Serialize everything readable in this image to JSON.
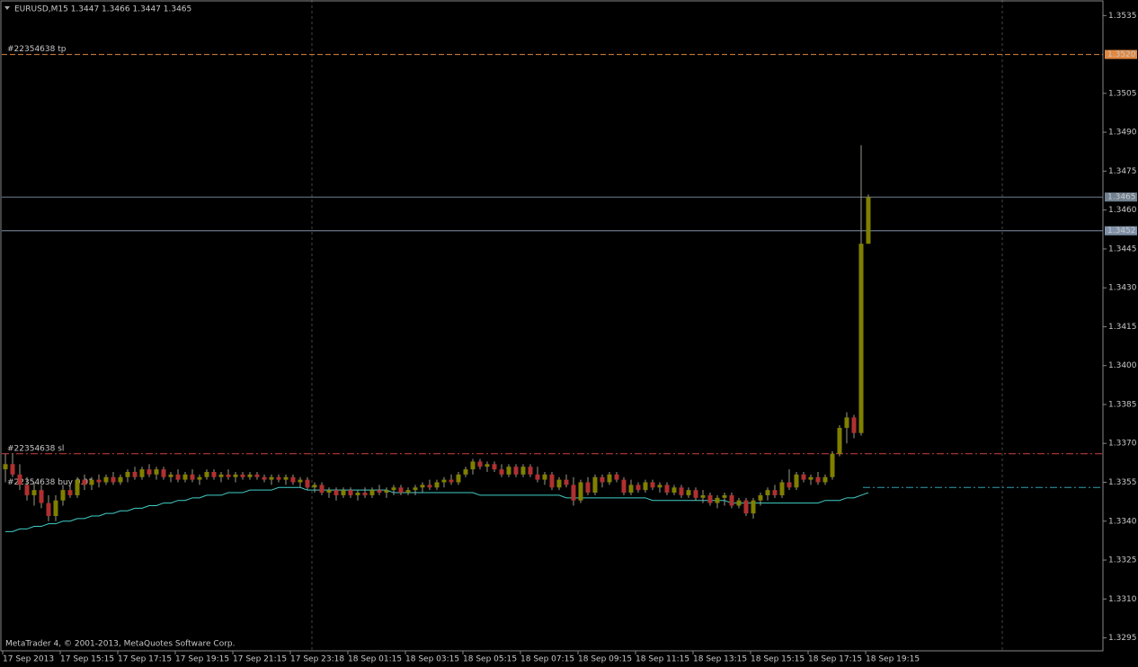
{
  "chart_data": {
    "type": "candlestick",
    "header": "EURUSD,M15  1.3447 1.3466 1.3447 1.3465",
    "footer": "MetaTrader 4, © 2001-2013, MetaQuotes Software Corp.",
    "ylim": [
      1.329,
      1.3541
    ],
    "yticks": [
      1.3535,
      1.3505,
      {
        "value": 1.349,
        "label": "1.3490"
      },
      1.3475,
      {
        "value": 1.346,
        "label": "1.3460"
      },
      1.3445,
      {
        "value": 1.343,
        "label": "1.3430"
      },
      1.3415,
      {
        "value": 1.34,
        "label": "1.3400"
      },
      1.3385,
      {
        "value": 1.337,
        "label": "1.3370"
      },
      1.3355,
      {
        "value": 1.334,
        "label": "1.3340"
      },
      1.3325,
      {
        "value": 1.331,
        "label": "1.3310"
      },
      1.3295
    ],
    "up_color": "#808000",
    "down_color": "#b03030",
    "categories": [
      "17 Sep 2013",
      null,
      null,
      null,
      null,
      null,
      null,
      null,
      "17 Sep 15:15",
      null,
      null,
      null,
      null,
      null,
      null,
      null,
      "17 Sep 17:15",
      null,
      null,
      null,
      null,
      null,
      null,
      null,
      "17 Sep 19:15",
      null,
      null,
      null,
      null,
      null,
      null,
      null,
      "17 Sep 21:15",
      null,
      null,
      null,
      null,
      null,
      null,
      null,
      "17 Sep 23:18",
      null,
      null,
      null,
      null,
      null,
      null,
      null,
      "18 Sep 01:15",
      null,
      null,
      null,
      null,
      null,
      null,
      null,
      "18 Sep 03:15",
      null,
      null,
      null,
      null,
      null,
      null,
      null,
      "18 Sep 05:15",
      null,
      null,
      null,
      null,
      null,
      null,
      null,
      "18 Sep 07:15",
      null,
      null,
      null,
      null,
      null,
      null,
      null,
      "18 Sep 09:15",
      null,
      null,
      null,
      null,
      null,
      null,
      null,
      "18 Sep 11:15",
      null,
      null,
      null,
      null,
      null,
      null,
      null,
      "18 Sep 13:15",
      null,
      null,
      null,
      null,
      null,
      null,
      null,
      "18 Sep 15:15",
      null,
      null,
      null,
      null,
      null,
      null,
      null,
      "18 Sep 17:15",
      null,
      null,
      null,
      null,
      null,
      null,
      null,
      "18 Sep 19:15"
    ],
    "open": [
      1.336,
      1.3362,
      1.3358,
      1.3354,
      1.335,
      1.3352,
      1.3347,
      1.3342,
      1.3348,
      1.3352,
      1.335,
      1.3356,
      1.3354,
      1.3356,
      1.3355,
      1.3357,
      1.3355,
      1.3357,
      1.3359,
      1.3357,
      1.336,
      1.3358,
      1.336,
      1.3357,
      1.3358,
      1.3356,
      1.3358,
      1.3356,
      1.3357,
      1.3359,
      1.3357,
      1.3358,
      1.3357,
      1.3358,
      1.3357,
      1.3358,
      1.3357,
      1.3356,
      1.3357,
      1.3356,
      1.3357,
      1.3355,
      1.3356,
      1.3353,
      1.3354,
      1.3351,
      1.3352,
      1.335,
      1.3352,
      1.335,
      1.3351,
      1.335,
      1.3352,
      1.3351,
      1.3352,
      1.3353,
      1.3351,
      1.3352,
      1.3353,
      1.3354,
      1.3353,
      1.3355,
      1.3356,
      1.3355,
      1.3358,
      1.336,
      1.3363,
      1.3361,
      1.3362,
      1.336,
      1.3358,
      1.3361,
      1.3358,
      1.3361,
      1.3358,
      1.3356,
      1.3358,
      1.3353,
      1.3356,
      1.3354,
      1.3348,
      1.3355,
      1.3351,
      1.3357,
      1.3355,
      1.3358,
      1.3356,
      1.3351,
      1.3354,
      1.3352,
      1.3355,
      1.3353,
      1.3354,
      1.3351,
      1.3353,
      1.335,
      1.3352,
      1.3349,
      1.335,
      1.3347,
      1.3349,
      1.335,
      1.3346,
      1.3348,
      1.3343,
      1.3348,
      1.335,
      1.3352,
      1.335,
      1.3355,
      1.3353,
      1.3358,
      1.3356,
      1.3357,
      1.3355,
      1.3357,
      1.3366,
      1.3376,
      1.338,
      1.3374,
      1.3447
    ],
    "high": [
      1.3366,
      1.3366,
      1.3362,
      1.3357,
      1.3355,
      1.3354,
      1.335,
      1.335,
      1.3354,
      1.3354,
      1.3357,
      1.3358,
      1.3357,
      1.3358,
      1.3358,
      1.3359,
      1.3358,
      1.336,
      1.3361,
      1.3361,
      1.3362,
      1.3361,
      1.3361,
      1.3359,
      1.336,
      1.3359,
      1.336,
      1.3358,
      1.336,
      1.336,
      1.3359,
      1.336,
      1.3359,
      1.3359,
      1.3359,
      1.3359,
      1.3358,
      1.3358,
      1.3358,
      1.3358,
      1.3358,
      1.3357,
      1.3357,
      1.3355,
      1.3355,
      1.3353,
      1.3353,
      1.3353,
      1.3353,
      1.3352,
      1.3353,
      1.3353,
      1.3354,
      1.3353,
      1.3354,
      1.3354,
      1.3353,
      1.3354,
      1.3355,
      1.3356,
      1.3356,
      1.3357,
      1.3358,
      1.3359,
      1.3361,
      1.3364,
      1.3364,
      1.3363,
      1.3363,
      1.3362,
      1.3362,
      1.3362,
      1.3362,
      1.3362,
      1.3361,
      1.3359,
      1.3359,
      1.3357,
      1.3358,
      1.3357,
      1.3356,
      1.3357,
      1.3358,
      1.3358,
      1.3359,
      1.3359,
      1.3357,
      1.3356,
      1.3355,
      1.3356,
      1.3356,
      1.3355,
      1.3355,
      1.3354,
      1.3354,
      1.3353,
      1.3353,
      1.3352,
      1.3351,
      1.335,
      1.3351,
      1.3351,
      1.3349,
      1.3349,
      1.3349,
      1.3351,
      1.3353,
      1.3354,
      1.3356,
      1.336,
      1.3359,
      1.3359,
      1.3358,
      1.3359,
      1.3358,
      1.3367,
      1.3377,
      1.3382,
      1.3381,
      1.3485,
      1.3466
    ],
    "low": [
      1.3355,
      1.3357,
      1.3352,
      1.3348,
      1.3346,
      1.3345,
      1.334,
      1.334,
      1.3346,
      1.3349,
      1.3349,
      1.3352,
      1.3352,
      1.3353,
      1.3354,
      1.3354,
      1.3354,
      1.3355,
      1.3356,
      1.3356,
      1.3357,
      1.3356,
      1.3356,
      1.3355,
      1.3355,
      1.3355,
      1.3355,
      1.3354,
      1.3356,
      1.3356,
      1.3355,
      1.3356,
      1.3355,
      1.3356,
      1.3356,
      1.3356,
      1.3355,
      1.3354,
      1.3355,
      1.3354,
      1.3354,
      1.3353,
      1.3352,
      1.3351,
      1.335,
      1.3349,
      1.3348,
      1.3349,
      1.3349,
      1.3348,
      1.3349,
      1.3349,
      1.335,
      1.3349,
      1.335,
      1.335,
      1.335,
      1.335,
      1.3351,
      1.3352,
      1.3352,
      1.3353,
      1.3354,
      1.3354,
      1.3357,
      1.3358,
      1.336,
      1.3359,
      1.3359,
      1.3357,
      1.3357,
      1.3357,
      1.3357,
      1.3357,
      1.3355,
      1.3354,
      1.3352,
      1.3352,
      1.3353,
      1.3346,
      1.3347,
      1.335,
      1.335,
      1.3353,
      1.3354,
      1.3355,
      1.335,
      1.335,
      1.3351,
      1.3351,
      1.3352,
      1.3351,
      1.335,
      1.335,
      1.3349,
      1.3349,
      1.3348,
      1.3347,
      1.3346,
      1.3345,
      1.3346,
      1.3345,
      1.3345,
      1.3342,
      1.3341,
      1.3346,
      1.3348,
      1.3349,
      1.3349,
      1.3352,
      1.3352,
      1.3355,
      1.3354,
      1.3354,
      1.3354,
      1.3356,
      1.3365,
      1.337,
      1.3372,
      1.3373,
      1.3447
    ],
    "close": [
      1.3362,
      1.3358,
      1.3354,
      1.335,
      1.3352,
      1.3347,
      1.3342,
      1.3348,
      1.3352,
      1.335,
      1.3356,
      1.3354,
      1.3356,
      1.3355,
      1.3357,
      1.3355,
      1.3357,
      1.3359,
      1.3357,
      1.336,
      1.3358,
      1.336,
      1.3357,
      1.3358,
      1.3356,
      1.3358,
      1.3356,
      1.3357,
      1.3359,
      1.3357,
      1.3358,
      1.3357,
      1.3358,
      1.3357,
      1.3358,
      1.3357,
      1.3356,
      1.3357,
      1.3356,
      1.3357,
      1.3355,
      1.3356,
      1.3353,
      1.3354,
      1.3351,
      1.3352,
      1.335,
      1.3352,
      1.335,
      1.3351,
      1.335,
      1.3352,
      1.3351,
      1.3352,
      1.3353,
      1.3351,
      1.3352,
      1.3353,
      1.3354,
      1.3353,
      1.3355,
      1.3356,
      1.3355,
      1.3358,
      1.336,
      1.3363,
      1.3361,
      1.3362,
      1.336,
      1.3358,
      1.3361,
      1.3358,
      1.3361,
      1.3358,
      1.3356,
      1.3358,
      1.3353,
      1.3356,
      1.3354,
      1.3348,
      1.3355,
      1.3351,
      1.3357,
      1.3355,
      1.3358,
      1.3356,
      1.3351,
      1.3354,
      1.3352,
      1.3355,
      1.3353,
      1.3354,
      1.3351,
      1.3353,
      1.335,
      1.3352,
      1.3349,
      1.335,
      1.3347,
      1.3349,
      1.335,
      1.3346,
      1.3348,
      1.3343,
      1.3348,
      1.335,
      1.3352,
      1.335,
      1.3355,
      1.3353,
      1.3358,
      1.3356,
      1.3357,
      1.3355,
      1.3357,
      1.3366,
      1.3376,
      1.338,
      1.3374,
      1.3447,
      1.3465
    ],
    "indicator": {
      "color": "#40d0c8",
      "values": [
        1.3336,
        1.3336,
        1.3337,
        1.3337,
        1.3338,
        1.3338,
        1.3339,
        1.3339,
        1.334,
        1.334,
        1.3341,
        1.3341,
        1.3342,
        1.3342,
        1.3343,
        1.3343,
        1.3344,
        1.3344,
        1.3345,
        1.3345,
        1.3346,
        1.3346,
        1.3347,
        1.3347,
        1.3348,
        1.3348,
        1.3349,
        1.3349,
        1.335,
        1.335,
        1.335,
        1.3351,
        1.3351,
        1.3351,
        1.3352,
        1.3352,
        1.3352,
        1.3352,
        1.3353,
        1.3353,
        1.3353,
        1.3353,
        1.3352,
        1.3352,
        1.3352,
        1.3352,
        1.3352,
        1.3352,
        1.3352,
        1.3352,
        1.3352,
        1.3352,
        1.3352,
        1.3352,
        1.3351,
        1.3351,
        1.3351,
        1.3351,
        1.3351,
        1.3351,
        1.3351,
        1.3351,
        1.3351,
        1.3351,
        1.3351,
        1.3351,
        1.335,
        1.335,
        1.335,
        1.335,
        1.335,
        1.335,
        1.335,
        1.335,
        1.335,
        1.335,
        1.335,
        1.335,
        1.3349,
        1.3349,
        1.3349,
        1.3349,
        1.3349,
        1.3349,
        1.3349,
        1.3349,
        1.3349,
        1.3349,
        1.3349,
        1.3349,
        1.3348,
        1.3348,
        1.3348,
        1.3348,
        1.3348,
        1.3348,
        1.3348,
        1.3348,
        1.3348,
        1.3348,
        1.3348,
        1.3347,
        1.3347,
        1.3347,
        1.3347,
        1.3347,
        1.3347,
        1.3347,
        1.3347,
        1.3347,
        1.3347,
        1.3347,
        1.3347,
        1.3347,
        1.3348,
        1.3348,
        1.3348,
        1.3349,
        1.3349,
        1.335,
        1.3351
      ]
    },
    "hlines": [
      {
        "name": "#22354638 tp",
        "value": 1.352,
        "label": "1.3520",
        "color": "#e08840",
        "style": "dash"
      },
      {
        "value": 1.3465,
        "label": "1.3465",
        "color": "#708090",
        "style": "solid"
      },
      {
        "value": 1.3452,
        "label": "1.3452",
        "color": "#8090a8",
        "style": "solid"
      },
      {
        "name": "#22354638 sl",
        "value": 1.3366,
        "color": "#d04040",
        "style": "dashdot"
      },
      {
        "name": "#22354638 buy 0.01",
        "value": 1.3353,
        "color": "#30a0b0",
        "style": "dashdot"
      }
    ]
  }
}
